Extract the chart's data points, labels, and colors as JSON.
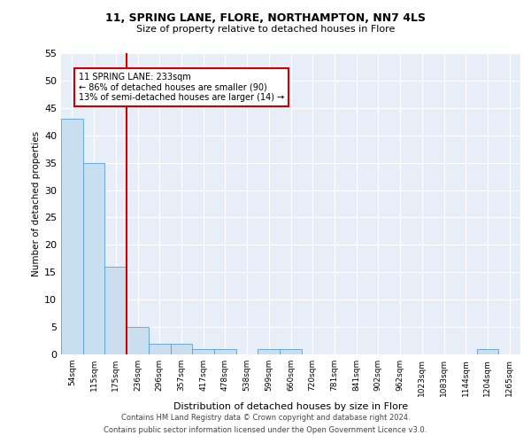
{
  "title1": "11, SPRING LANE, FLORE, NORTHAMPTON, NN7 4LS",
  "title2": "Size of property relative to detached houses in Flore",
  "xlabel": "Distribution of detached houses by size in Flore",
  "ylabel": "Number of detached properties",
  "categories": [
    "54sqm",
    "115sqm",
    "175sqm",
    "236sqm",
    "296sqm",
    "357sqm",
    "417sqm",
    "478sqm",
    "538sqm",
    "599sqm",
    "660sqm",
    "720sqm",
    "781sqm",
    "841sqm",
    "902sqm",
    "962sqm",
    "1023sqm",
    "1083sqm",
    "1144sqm",
    "1204sqm",
    "1265sqm"
  ],
  "values": [
    43,
    35,
    16,
    5,
    2,
    2,
    1,
    1,
    0,
    1,
    1,
    0,
    0,
    0,
    0,
    0,
    0,
    0,
    0,
    1,
    0
  ],
  "bar_color": "#c9dff0",
  "bar_edge_color": "#5a9fd4",
  "vline_color": "#cc0000",
  "annotation_line1": "11 SPRING LANE: 233sqm",
  "annotation_line2": "← 86% of detached houses are smaller (90)",
  "annotation_line3": "13% of semi-detached houses are larger (14) →",
  "annotation_box_color": "#cc0000",
  "ylim": [
    0,
    55
  ],
  "yticks": [
    0,
    5,
    10,
    15,
    20,
    25,
    30,
    35,
    40,
    45,
    50,
    55
  ],
  "footer1": "Contains HM Land Registry data © Crown copyright and database right 2024.",
  "footer2": "Contains public sector information licensed under the Open Government Licence v3.0.",
  "plot_bg_color": "#e8eef8"
}
